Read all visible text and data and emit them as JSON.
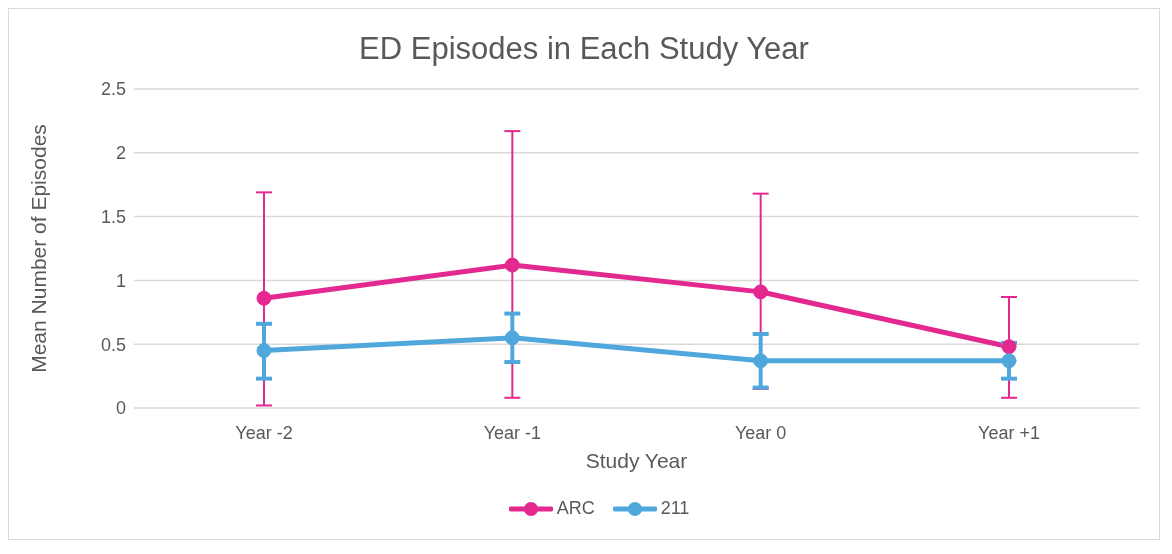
{
  "chart_data": {
    "type": "line",
    "title": "ED Episodes in Each Study Year",
    "xlabel": "Study Year",
    "ylabel": "Mean Number of Episodes",
    "categories": [
      "Year -2",
      "Year -1",
      "Year 0",
      "Year +1"
    ],
    "series": [
      {
        "name": "ARC",
        "color": "#e3298f",
        "values": [
          0.86,
          1.12,
          0.91,
          0.48
        ],
        "errors": [
          [
            0.02,
            1.69
          ],
          [
            0.08,
            2.17
          ],
          [
            0.15,
            1.68
          ],
          [
            0.08,
            0.87
          ]
        ]
      },
      {
        "name": "211",
        "color": "#4fa7dc",
        "values": [
          0.45,
          0.55,
          0.37,
          0.37
        ],
        "errors": [
          [
            0.23,
            0.66
          ],
          [
            0.36,
            0.74
          ],
          [
            0.16,
            0.58
          ],
          [
            0.23,
            0.51
          ]
        ]
      }
    ],
    "ylim": [
      0,
      2.5
    ],
    "yticks": [
      0,
      0.5,
      1,
      1.5,
      2,
      2.5
    ],
    "grid": "y",
    "legend": "bottom",
    "marker": "circle",
    "line_style": "solid"
  }
}
